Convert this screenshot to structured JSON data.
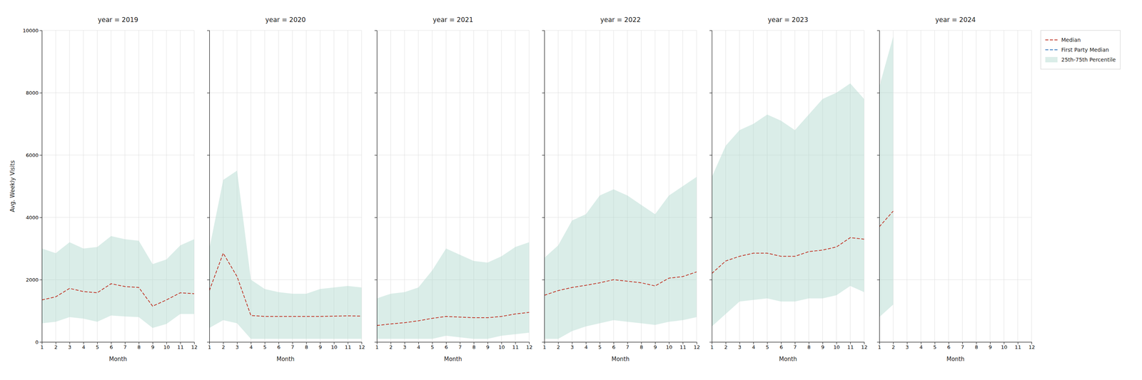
{
  "chart_data": [
    {
      "type": "line",
      "title": "year = 2019",
      "xlabel": "Month",
      "ylabel": "Avg. Weekly Visits",
      "x": [
        1,
        2,
        3,
        4,
        5,
        6,
        7,
        8,
        9,
        10,
        11,
        12
      ],
      "xlim": [
        1,
        12
      ],
      "xticks": [
        1,
        2,
        3,
        4,
        5,
        6,
        7,
        8,
        9,
        10,
        11,
        12
      ],
      "ylim": [
        0,
        10000
      ],
      "yticks": [
        0,
        2000,
        4000,
        6000,
        8000,
        10000
      ],
      "grid": true,
      "series": [
        {
          "name": "Median",
          "color": "#c0392b",
          "line_style": "dashed",
          "values": [
            1350,
            1450,
            1720,
            1620,
            1580,
            1870,
            1780,
            1750,
            1150,
            1350,
            1580,
            1550
          ]
        },
        {
          "name": "25th-75th Percentile",
          "type": "area",
          "color": "#aed6cc",
          "lower": [
            600,
            650,
            800,
            750,
            650,
            850,
            820,
            800,
            450,
            580,
            900,
            900
          ],
          "upper": [
            3000,
            2850,
            3200,
            3000,
            3050,
            3400,
            3300,
            3250,
            2500,
            2650,
            3100,
            3300
          ]
        }
      ]
    },
    {
      "type": "line",
      "title": "year = 2020",
      "xlabel": "Month",
      "x": [
        1,
        2,
        3,
        4,
        5,
        6,
        7,
        8,
        9,
        10,
        11,
        12
      ],
      "xlim": [
        1,
        12
      ],
      "xticks": [
        1,
        2,
        3,
        4,
        5,
        6,
        7,
        8,
        9,
        10,
        11,
        12
      ],
      "ylim": [
        0,
        10000
      ],
      "yticks": [
        0,
        2000,
        4000,
        6000,
        8000,
        10000
      ],
      "grid": true,
      "tick_labels": "x",
      "series": [
        {
          "name": "Median",
          "color": "#c0392b",
          "line_style": "dashed",
          "values": [
            1650,
            2850,
            2100,
            850,
            820,
            820,
            820,
            820,
            820,
            830,
            840,
            830
          ]
        },
        {
          "name": "25th-75th Percentile",
          "type": "area",
          "color": "#aed6cc",
          "lower": [
            450,
            700,
            600,
            100,
            100,
            100,
            100,
            100,
            100,
            100,
            100,
            100
          ],
          "upper": [
            3000,
            5200,
            5500,
            2000,
            1700,
            1600,
            1550,
            1550,
            1700,
            1750,
            1800,
            1750
          ]
        }
      ]
    },
    {
      "type": "line",
      "title": "year = 2021",
      "xlabel": "Month",
      "x": [
        1,
        2,
        3,
        4,
        5,
        6,
        7,
        8,
        9,
        10,
        11,
        12
      ],
      "xlim": [
        1,
        12
      ],
      "xticks": [
        1,
        2,
        3,
        4,
        5,
        6,
        7,
        8,
        9,
        10,
        11,
        12
      ],
      "ylim": [
        0,
        10000
      ],
      "yticks": [
        0,
        2000,
        4000,
        6000,
        8000,
        10000
      ],
      "grid": true,
      "tick_labels": "x",
      "series": [
        {
          "name": "Median",
          "color": "#c0392b",
          "line_style": "dashed",
          "values": [
            530,
            580,
            620,
            680,
            760,
            820,
            800,
            780,
            780,
            820,
            900,
            950
          ]
        },
        {
          "name": "25th-75th Percentile",
          "type": "area",
          "color": "#aed6cc",
          "lower": [
            100,
            100,
            100,
            100,
            100,
            200,
            150,
            100,
            100,
            200,
            250,
            300
          ],
          "upper": [
            1400,
            1550,
            1600,
            1750,
            2300,
            3000,
            2800,
            2600,
            2550,
            2750,
            3050,
            3200
          ]
        }
      ]
    },
    {
      "type": "line",
      "title": "year = 2022",
      "xlabel": "Month",
      "x": [
        1,
        2,
        3,
        4,
        5,
        6,
        7,
        8,
        9,
        10,
        11,
        12
      ],
      "xlim": [
        1,
        12
      ],
      "xticks": [
        1,
        2,
        3,
        4,
        5,
        6,
        7,
        8,
        9,
        10,
        11,
        12
      ],
      "ylim": [
        0,
        10000
      ],
      "yticks": [
        0,
        2000,
        4000,
        6000,
        8000,
        10000
      ],
      "grid": true,
      "tick_labels": "x",
      "series": [
        {
          "name": "Median",
          "color": "#c0392b",
          "line_style": "dashed",
          "values": [
            1500,
            1650,
            1750,
            1820,
            1900,
            2000,
            1950,
            1900,
            1800,
            2050,
            2100,
            2250
          ]
        },
        {
          "name": "25th-75th Percentile",
          "type": "area",
          "color": "#aed6cc",
          "lower": [
            100,
            100,
            350,
            500,
            600,
            700,
            650,
            600,
            550,
            650,
            700,
            800
          ],
          "upper": [
            2700,
            3100,
            3900,
            4100,
            4700,
            4900,
            4700,
            4400,
            4100,
            4700,
            5000,
            5300
          ]
        }
      ]
    },
    {
      "type": "line",
      "title": "year = 2023",
      "xlabel": "Month",
      "x": [
        1,
        2,
        3,
        4,
        5,
        6,
        7,
        8,
        9,
        10,
        11,
        12
      ],
      "xlim": [
        1,
        12
      ],
      "xticks": [
        1,
        2,
        3,
        4,
        5,
        6,
        7,
        8,
        9,
        10,
        11,
        12
      ],
      "ylim": [
        0,
        10000
      ],
      "yticks": [
        0,
        2000,
        4000,
        6000,
        8000,
        10000
      ],
      "grid": true,
      "tick_labels": "x",
      "series": [
        {
          "name": "Median",
          "color": "#c0392b",
          "line_style": "dashed",
          "values": [
            2200,
            2600,
            2750,
            2850,
            2850,
            2750,
            2750,
            2900,
            2950,
            3050,
            3350,
            3300
          ]
        },
        {
          "name": "25th-75th Percentile",
          "type": "area",
          "color": "#aed6cc",
          "lower": [
            500,
            900,
            1300,
            1350,
            1400,
            1300,
            1300,
            1400,
            1400,
            1500,
            1800,
            1600
          ],
          "upper": [
            5300,
            6300,
            6800,
            7000,
            7300,
            7100,
            6800,
            7300,
            7800,
            8000,
            8300,
            7800
          ]
        }
      ]
    },
    {
      "type": "line",
      "title": "year = 2024",
      "xlabel": "Month",
      "x": [
        1,
        2,
        3,
        4,
        5,
        6,
        7,
        8,
        9,
        10,
        11,
        12
      ],
      "xlim": [
        1,
        12
      ],
      "xticks": [
        1,
        2,
        3,
        4,
        5,
        6,
        7,
        8,
        9,
        10,
        11,
        12
      ],
      "ylim": [
        0,
        10000
      ],
      "yticks": [
        0,
        2000,
        4000,
        6000,
        8000,
        10000
      ],
      "grid": true,
      "tick_labels": "x",
      "legend": "right",
      "series": [
        {
          "name": "Median",
          "color": "#c0392b",
          "line_style": "dashed",
          "values": [
            3700,
            4200,
            null,
            null,
            null,
            null,
            null,
            null,
            null,
            null,
            null,
            null
          ]
        },
        {
          "name": "First Party Median",
          "color": "#3a7bbf",
          "line_style": "dashed",
          "values": [
            null,
            null,
            null,
            null,
            null,
            null,
            null,
            null,
            null,
            null,
            null,
            null
          ]
        },
        {
          "name": "25th-75th Percentile",
          "type": "area",
          "color": "#aed6cc",
          "lower": [
            800,
            1200,
            null,
            null,
            null,
            null,
            null,
            null,
            null,
            null,
            null,
            null
          ],
          "upper": [
            8200,
            9800,
            null,
            null,
            null,
            null,
            null,
            null,
            null,
            null,
            null,
            null
          ]
        }
      ]
    }
  ]
}
